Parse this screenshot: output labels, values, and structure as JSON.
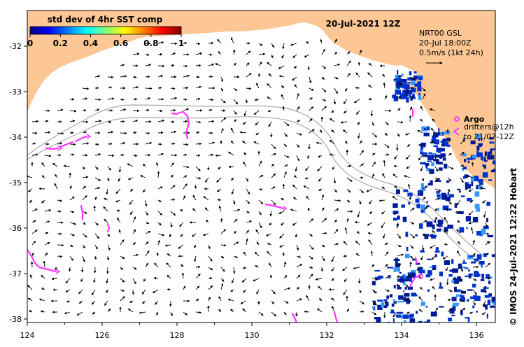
{
  "colorbar": {
    "title": "std dev of 4hr SST comp",
    "ticks": [
      "0",
      "0.2",
      "0.4",
      "0.6",
      "0.8",
      "1"
    ],
    "gradient": [
      "#00007f",
      "#0000ff",
      "#007fff",
      "#00ffff",
      "#7fff7f",
      "#ffff00",
      "#ff7f00",
      "#ff0000",
      "#7f0000"
    ]
  },
  "map": {
    "date_title": "20-Jul-2021 12Z",
    "info_lines": [
      "NRT00 GSL",
      "20-Jul 18:00Z",
      "0.5m/s (1kt 24h)"
    ],
    "argo_label": "Argo",
    "drifters_lines": [
      "drifters@12h",
      "to 21/07-12Z"
    ],
    "side_caption": "©  IMOS 24-Jul-2021 12:22 Hobart",
    "lon_ticks": [
      "124",
      "126",
      "128",
      "130",
      "132",
      "134",
      "136"
    ],
    "lat_ticks": [
      "-32",
      "-33",
      "-34",
      "-35",
      "-36",
      "-37",
      "-38"
    ]
  },
  "colors": {
    "land": "#fcc794",
    "drifter": "#ff33ff",
    "bathymetry": "#aaaaaa",
    "cloud_blue": "#0033cc"
  }
}
